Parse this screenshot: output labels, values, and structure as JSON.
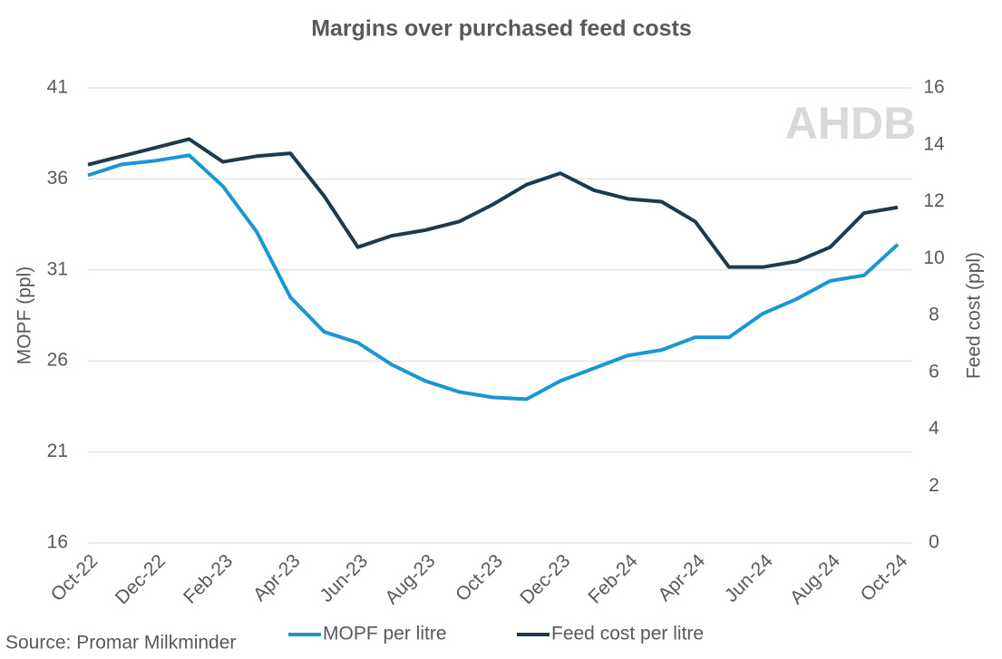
{
  "chart_data": {
    "type": "line",
    "title": "Margins over purchased feed costs",
    "ylabel": "MOPF (ppl)",
    "y2label": "Feed cost (ppl)",
    "source": "Source: Promar Milkminder",
    "watermark": "AHDB",
    "categories": [
      "Oct-22",
      null,
      "Dec-22",
      null,
      "Feb-23",
      null,
      "Apr-23",
      null,
      "Jun-23",
      null,
      "Aug-23",
      null,
      "Oct-23",
      null,
      "Dec-23",
      null,
      "Feb-24",
      null,
      "Apr-24",
      null,
      "Jun-24",
      null,
      "Aug-24",
      null,
      "Oct-24"
    ],
    "series": [
      {
        "name": "MOPF per litre",
        "color": "#1b96d3",
        "axis": "y",
        "values": [
          36.2,
          36.8,
          37.0,
          37.3,
          35.6,
          33.1,
          29.5,
          27.6,
          27.0,
          25.8,
          24.9,
          24.3,
          24.0,
          23.9,
          24.9,
          25.6,
          26.3,
          26.6,
          27.3,
          27.3,
          28.6,
          29.4,
          30.4,
          30.7,
          32.4
        ]
      },
      {
        "name": "Feed cost per litre",
        "color": "#1f3a4c",
        "axis": "y2",
        "values": [
          13.3,
          13.6,
          13.9,
          14.2,
          13.4,
          13.6,
          13.7,
          12.2,
          10.4,
          10.8,
          11.0,
          11.3,
          11.9,
          12.6,
          13.0,
          12.4,
          12.1,
          12.0,
          11.3,
          9.7,
          9.7,
          9.9,
          10.4,
          11.6,
          11.8
        ]
      }
    ],
    "ylim": [
      16,
      41
    ],
    "yticks": [
      16,
      21,
      26,
      31,
      36,
      41
    ],
    "y2lim": [
      0,
      16
    ],
    "y2ticks": [
      0,
      2,
      4,
      6,
      8,
      10,
      12,
      14,
      16
    ],
    "grid": true
  }
}
